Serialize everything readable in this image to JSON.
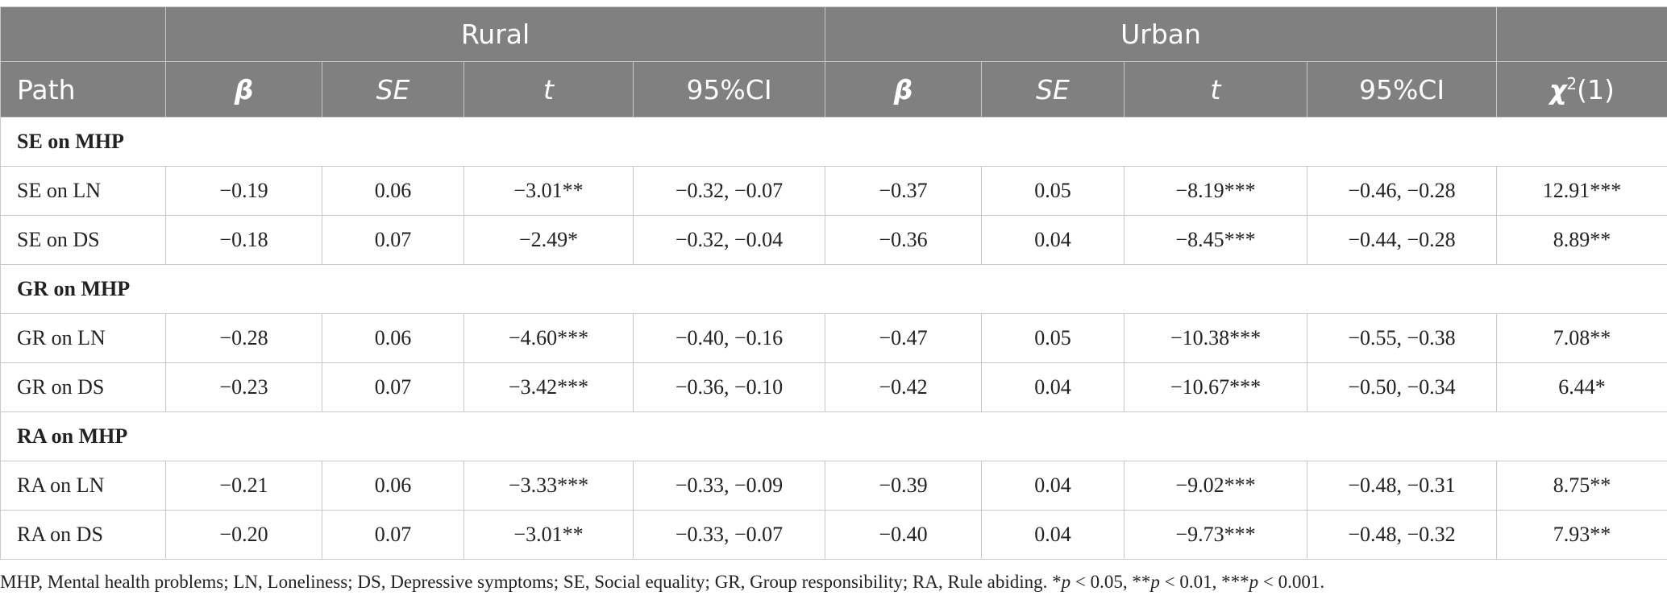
{
  "table": {
    "group_headers": {
      "blank": "",
      "rural": "Rural",
      "urban": "Urban",
      "blank_end": ""
    },
    "columns": {
      "path": "Path",
      "rural_beta": "β",
      "rural_se": "SE",
      "rural_t": "t",
      "rural_ci": "95%CI",
      "urban_beta": "β",
      "urban_se": "SE",
      "urban_t": "t",
      "urban_ci": "95%CI",
      "chi_symbol": "χ",
      "chi_sup": "2",
      "chi_df": "(1)"
    },
    "sections": [
      {
        "title": "SE on MHP",
        "rows": [
          {
            "path": "SE on LN",
            "r_beta": "−0.19",
            "r_se": "0.06",
            "r_t": "−3.01**",
            "r_ci": "−0.32, −0.07",
            "u_beta": "−0.37",
            "u_se": "0.05",
            "u_t": "−8.19***",
            "u_ci": "−0.46, −0.28",
            "chi": "12.91***"
          },
          {
            "path": "SE on DS",
            "r_beta": "−0.18",
            "r_se": "0.07",
            "r_t": "−2.49*",
            "r_ci": "−0.32, −0.04",
            "u_beta": "−0.36",
            "u_se": "0.04",
            "u_t": "−8.45***",
            "u_ci": "−0.44, −0.28",
            "chi": "8.89**"
          }
        ]
      },
      {
        "title": "GR on MHP",
        "rows": [
          {
            "path": "GR on LN",
            "r_beta": "−0.28",
            "r_se": "0.06",
            "r_t": "−4.60***",
            "r_ci": "−0.40, −0.16",
            "u_beta": "−0.47",
            "u_se": "0.05",
            "u_t": "−10.38***",
            "u_ci": "−0.55, −0.38",
            "chi": "7.08**"
          },
          {
            "path": "GR on DS",
            "r_beta": "−0.23",
            "r_se": "0.07",
            "r_t": "−3.42***",
            "r_ci": "−0.36, −0.10",
            "u_beta": "−0.42",
            "u_se": "0.04",
            "u_t": "−10.67***",
            "u_ci": "−0.50, −0.34",
            "chi": "6.44*"
          }
        ]
      },
      {
        "title": "RA on MHP",
        "rows": [
          {
            "path": "RA on LN",
            "r_beta": "−0.21",
            "r_se": "0.06",
            "r_t": "−3.33***",
            "r_ci": "−0.33, −0.09",
            "u_beta": "−0.39",
            "u_se": "0.04",
            "u_t": "−9.02***",
            "u_ci": "−0.48, −0.31",
            "chi": "8.75**"
          },
          {
            "path": "RA on DS",
            "r_beta": "−0.20",
            "r_se": "0.07",
            "r_t": "−3.01**",
            "r_ci": "−0.33, −0.07",
            "u_beta": "−0.40",
            "u_se": "0.04",
            "u_t": "−9.73***",
            "u_ci": "−0.48, −0.32",
            "chi": "7.93**"
          }
        ]
      }
    ]
  },
  "footnote": {
    "text": "MHP, Mental health problems; LN, Loneliness; DS, Depressive symptoms; SE, Social equality; GR, Group responsibility; RA, Rule abiding. ",
    "p1_star": "*",
    "p1_p": "p",
    "p1_rest": " < 0.05, ",
    "p2_star": "**",
    "p2_p": "p",
    "p2_rest": " < 0.01, ",
    "p3_star": "***",
    "p3_p": "p",
    "p3_rest": " < 0.001."
  }
}
